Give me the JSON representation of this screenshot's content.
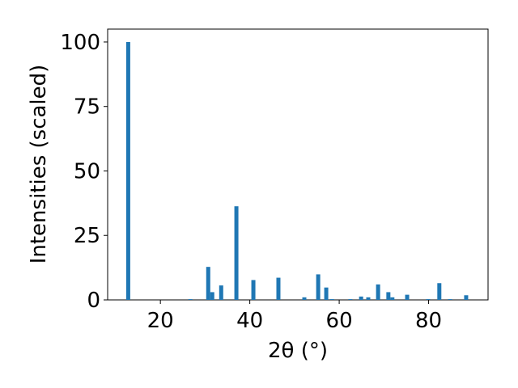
{
  "chart_data": {
    "type": "bar",
    "x": [
      12.8,
      26.7,
      30.7,
      31.6,
      33.6,
      37.0,
      40.8,
      46.4,
      52.2,
      55.3,
      57.1,
      58.4,
      62.5,
      64.9,
      66.5,
      68.7,
      71.0,
      71.9,
      75.2,
      79.9,
      82.4,
      84.8,
      88.4
    ],
    "values": [
      100,
      0.3,
      12.8,
      3,
      5.6,
      36.3,
      7.7,
      8.6,
      1,
      9.9,
      4.8,
      0.3,
      0.3,
      1.3,
      1,
      6,
      3,
      1,
      2,
      0.3,
      6.5,
      0.3,
      1.8
    ],
    "color": "#1f77b4",
    "xlabel": "2θ (°)",
    "ylabel": "Intensities (scaled)",
    "xlim": [
      8.2,
      93.3
    ],
    "xticks": [
      20,
      40,
      60,
      80
    ],
    "ylim": [
      0,
      105
    ],
    "yticks": [
      0,
      25,
      50,
      75,
      100
    ]
  }
}
